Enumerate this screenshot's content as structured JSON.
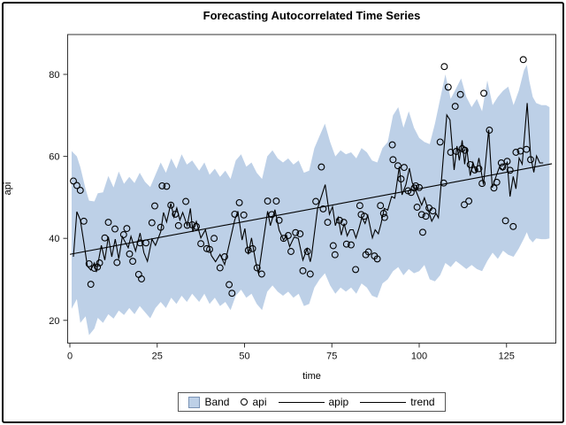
{
  "title": "Forecasting Autocorrelated Time Series",
  "x_axis": {
    "label": "time"
  },
  "y_axis": {
    "label": "api"
  },
  "legend": {
    "items": [
      {
        "label": "Band",
        "type": "band"
      },
      {
        "label": "api",
        "type": "marker"
      },
      {
        "label": "apip",
        "type": "line"
      },
      {
        "label": "trend",
        "type": "line"
      }
    ]
  },
  "colors": {
    "band_fill": "#bdd0e7",
    "band_edge": "#7a93b5",
    "line": "#000000",
    "marker": "#000000",
    "frame": "#333333",
    "tick_text": "#111111",
    "background": "#ffffff",
    "outer_border": "#000000"
  },
  "chart_data": {
    "type": "composite",
    "title": "Forecasting Autocorrelated Time Series",
    "xlabel": "time",
    "ylabel": "api",
    "x_ticks": [
      0,
      25,
      50,
      75,
      100,
      125
    ],
    "y_ticks": [
      20,
      40,
      60,
      80
    ],
    "xlim": [
      -0.6,
      139.1
    ],
    "ylim": [
      13.5,
      89.7
    ],
    "grid": false,
    "legend_position": "bottom",
    "band": {
      "name": "Band",
      "t": [
        0.5,
        2,
        3,
        4.5,
        5.5,
        7,
        8,
        9.5,
        11,
        12.5,
        14,
        15.5,
        17,
        18.5,
        20,
        21.5,
        23,
        24.5,
        26,
        27.5,
        29,
        30.5,
        32,
        33.5,
        35,
        37,
        38.5,
        40,
        41.5,
        43,
        44.5,
        46,
        47.5,
        49,
        50.5,
        52,
        53.5,
        55,
        56.5,
        58,
        59.5,
        61,
        62.5,
        64,
        65.5,
        67,
        68.5,
        70,
        71.5,
        73,
        74.5,
        76,
        77.5,
        79,
        80.5,
        82,
        83.5,
        85,
        86.5,
        88,
        89.5,
        91,
        92.5,
        94,
        95.5,
        97,
        98.5,
        100,
        101.5,
        103,
        104.5,
        106,
        107.5,
        109,
        110.5,
        112,
        113.5,
        115,
        116.5,
        118,
        119.5,
        121,
        122.5,
        124,
        125.5,
        127,
        128.5,
        130,
        130.8,
        131.5,
        132.5,
        133.5,
        135,
        136.3,
        137.3
      ],
      "lower": [
        22.8,
        25.2,
        19.4,
        21,
        16.4,
        18,
        20.6,
        19.4,
        21.5,
        20.4,
        22.4,
        21.3,
        23,
        21.5,
        23.5,
        22,
        20.5,
        23,
        24.5,
        23,
        25.5,
        24,
        26,
        24.5,
        26.5,
        24.5,
        26.5,
        24,
        25.5,
        23.5,
        24.5,
        22.5,
        26,
        27.5,
        25.5,
        26.5,
        24,
        22.5,
        27,
        28.5,
        27,
        26,
        27,
        25.5,
        26.5,
        23.5,
        24,
        28,
        30,
        31.5,
        28.5,
        26.5,
        28,
        27,
        28,
        26.5,
        29,
        28,
        26,
        25.5,
        29,
        30,
        32,
        33,
        31,
        32.5,
        31.5,
        32,
        33.5,
        30,
        29.5,
        31,
        34,
        33,
        34.5,
        33.5,
        32.5,
        33.5,
        32.5,
        32,
        34.5,
        36.5,
        35,
        37,
        36,
        35.5,
        37.5,
        40,
        41.5,
        40,
        39,
        40,
        39.8,
        39.8,
        40
      ],
      "upper": [
        61.3,
        60,
        57.4,
        52,
        49.2,
        49,
        51,
        51.2,
        55.2,
        52.4,
        56.3,
        53.3,
        55,
        53.5,
        56,
        53.8,
        52.5,
        55.5,
        58.5,
        56,
        59.5,
        57,
        60.5,
        58,
        59,
        56.5,
        58.5,
        55.5,
        57,
        55,
        56.5,
        54.5,
        59,
        60.5,
        57.5,
        58.5,
        56,
        54.5,
        60,
        61.5,
        59.5,
        58.5,
        59.5,
        58,
        59,
        56,
        56.5,
        62,
        65,
        68,
        63.5,
        60,
        61.5,
        60.5,
        61,
        59.5,
        62,
        61,
        59,
        58.5,
        62,
        63.5,
        70,
        72,
        67,
        71,
        67,
        64.5,
        63.5,
        63,
        68,
        74,
        80,
        74,
        76.5,
        79,
        74.5,
        72,
        74,
        71,
        78.5,
        72.5,
        74.5,
        76,
        77,
        72.5,
        76,
        81,
        82.3,
        78.5,
        74.5,
        73,
        72.5,
        72.5,
        72
      ]
    },
    "scatter": {
      "name": "api",
      "points": [
        [
          1,
          54
        ],
        [
          2,
          52.9
        ],
        [
          3,
          51.7
        ],
        [
          4,
          44.2
        ],
        [
          5.5,
          33.8
        ],
        [
          6,
          28.8
        ],
        [
          7,
          32.7
        ],
        [
          7.9,
          33
        ],
        [
          8.5,
          34
        ],
        [
          10,
          40.1
        ],
        [
          11,
          43.9
        ],
        [
          12.9,
          42.3
        ],
        [
          13.5,
          34.1
        ],
        [
          15.4,
          40.9
        ],
        [
          16.3,
          42.4
        ],
        [
          17.1,
          36.2
        ],
        [
          18,
          34.4
        ],
        [
          19.7,
          31.2
        ],
        [
          20.1,
          38.9
        ],
        [
          20.5,
          30.1
        ],
        [
          21.8,
          38.9
        ],
        [
          23.5,
          43.8
        ],
        [
          24.3,
          47.9
        ],
        [
          26,
          42.7
        ],
        [
          26.4,
          52.8
        ],
        [
          27.7,
          52.7
        ],
        [
          28.9,
          48.1
        ],
        [
          30.2,
          45.9
        ],
        [
          31.1,
          43.1
        ],
        [
          33.2,
          49
        ],
        [
          33.6,
          43.2
        ],
        [
          35,
          43.3
        ],
        [
          36.2,
          42.9
        ],
        [
          37.5,
          38.7
        ],
        [
          39.2,
          37.5
        ],
        [
          40,
          37.3
        ],
        [
          41.3,
          40
        ],
        [
          43,
          32.8
        ],
        [
          44.3,
          35.5
        ],
        [
          45.6,
          28.7
        ],
        [
          46.4,
          26.6
        ],
        [
          47.2,
          45.9
        ],
        [
          48.5,
          48.7
        ],
        [
          49.8,
          45.7
        ],
        [
          51.1,
          37.1
        ],
        [
          52.3,
          37.5
        ],
        [
          53.6,
          32.8
        ],
        [
          54.9,
          31.3
        ],
        [
          56.6,
          49.1
        ],
        [
          57.8,
          45.8
        ],
        [
          59.1,
          49.1
        ],
        [
          59.9,
          44.4
        ],
        [
          61.2,
          40
        ],
        [
          62.5,
          40.7
        ],
        [
          63.3,
          36.8
        ],
        [
          64.6,
          41.4
        ],
        [
          65.9,
          41.1
        ],
        [
          66.7,
          32.1
        ],
        [
          68,
          36.8
        ],
        [
          68.8,
          31.3
        ],
        [
          70.4,
          49
        ],
        [
          72,
          57.4
        ],
        [
          72.5,
          47.2
        ],
        [
          73.8,
          43.9
        ],
        [
          75.4,
          38.2
        ],
        [
          75.9,
          36
        ],
        [
          77.2,
          44.4
        ],
        [
          78.4,
          43.9
        ],
        [
          79.2,
          38.6
        ],
        [
          80.5,
          38.4
        ],
        [
          81.8,
          32.4
        ],
        [
          83,
          48
        ],
        [
          83.4,
          45.8
        ],
        [
          84.3,
          45.4
        ],
        [
          84.7,
          36
        ],
        [
          85.5,
          36.7
        ],
        [
          87.2,
          35.7
        ],
        [
          88,
          35
        ],
        [
          88.9,
          48
        ],
        [
          89.8,
          46.1
        ],
        [
          90.1,
          45.1
        ],
        [
          92.3,
          62.8
        ],
        [
          92.5,
          59.2
        ],
        [
          93.9,
          57.7
        ],
        [
          94.8,
          54.5
        ],
        [
          95.7,
          57.3
        ],
        [
          96.8,
          51.6
        ],
        [
          97.7,
          51.2
        ],
        [
          98.6,
          52.3
        ],
        [
          99,
          52.8
        ],
        [
          99.4,
          47.6
        ],
        [
          100,
          52.4
        ],
        [
          100.7,
          45.8
        ],
        [
          101,
          41.5
        ],
        [
          101.9,
          45.4
        ],
        [
          102.8,
          47.4
        ],
        [
          103.9,
          46.7
        ],
        [
          106,
          63.5
        ],
        [
          107,
          53.5
        ],
        [
          107.2,
          81.9
        ],
        [
          108.3,
          76.9
        ],
        [
          109,
          61
        ],
        [
          110.3,
          72.2
        ],
        [
          110.6,
          61.2
        ],
        [
          111.8,
          75.1
        ],
        [
          112.3,
          61.9
        ],
        [
          112.9,
          48.2
        ],
        [
          113.1,
          61.5
        ],
        [
          114.2,
          49.1
        ],
        [
          114.6,
          58
        ],
        [
          115.9,
          56.7
        ],
        [
          117.1,
          57
        ],
        [
          118,
          53.4
        ],
        [
          118.5,
          75.4
        ],
        [
          120.1,
          66.4
        ],
        [
          121.4,
          52.3
        ],
        [
          122.2,
          53.7
        ],
        [
          123.5,
          58.4
        ],
        [
          123.9,
          57.4
        ],
        [
          124.7,
          44.3
        ],
        [
          125.2,
          58.8
        ],
        [
          126,
          56.6
        ],
        [
          126.9,
          42.9
        ],
        [
          127.7,
          61
        ],
        [
          129,
          61.3
        ],
        [
          129.8,
          83.6
        ],
        [
          130.7,
          61.7
        ],
        [
          131.9,
          59.2
        ]
      ]
    },
    "apip_line": {
      "name": "apip",
      "points": [
        [
          1,
          35.5
        ],
        [
          2,
          46.5
        ],
        [
          3,
          44.5
        ],
        [
          4,
          39
        ],
        [
          5,
          33.2
        ],
        [
          6,
          32.3
        ],
        [
          7,
          34
        ],
        [
          7.6,
          31.8
        ],
        [
          9,
          38.3
        ],
        [
          10,
          34.7
        ],
        [
          11,
          40.4
        ],
        [
          12,
          35.5
        ],
        [
          13,
          39.8
        ],
        [
          14,
          35
        ],
        [
          15,
          40.4
        ],
        [
          16.7,
          37.7
        ],
        [
          17.5,
          40.5
        ],
        [
          18.8,
          36.9
        ],
        [
          20.1,
          41.3
        ],
        [
          21.2,
          36.5
        ],
        [
          22.2,
          34.4
        ],
        [
          23.5,
          39.8
        ],
        [
          24.5,
          38.3
        ],
        [
          26,
          41.6
        ],
        [
          26.8,
          46.3
        ],
        [
          27.7,
          44
        ],
        [
          28.9,
          48.5
        ],
        [
          29.8,
          45.2
        ],
        [
          30.6,
          47.4
        ],
        [
          31.5,
          44.5
        ],
        [
          32.3,
          46.3
        ],
        [
          33.6,
          43.1
        ],
        [
          34.5,
          47.3
        ],
        [
          35.2,
          41.6
        ],
        [
          36.2,
          44.1
        ],
        [
          37.5,
          40.1
        ],
        [
          38.8,
          42.1
        ],
        [
          40.5,
          35.8
        ],
        [
          41.7,
          34.3
        ],
        [
          43,
          36.1
        ],
        [
          44.3,
          33.6
        ],
        [
          47.2,
          44.5
        ],
        [
          48.1,
          46.6
        ],
        [
          49.3,
          39.6
        ],
        [
          50.1,
          42.4
        ],
        [
          51.1,
          36.1
        ],
        [
          52,
          40.1
        ],
        [
          53.2,
          34.3
        ],
        [
          54,
          31.4
        ],
        [
          56.6,
          46.6
        ],
        [
          57.4,
          43.1
        ],
        [
          58.7,
          47
        ],
        [
          59.9,
          42
        ],
        [
          61.2,
          39.6
        ],
        [
          62,
          40.8
        ],
        [
          62.9,
          38
        ],
        [
          64.2,
          40.3
        ],
        [
          65.4,
          40
        ],
        [
          66.7,
          34.7
        ],
        [
          67.9,
          37.5
        ],
        [
          68.8,
          34.3
        ],
        [
          69.2,
          35.8
        ],
        [
          70.9,
          47.3
        ],
        [
          73.1,
          53.1
        ],
        [
          74.3,
          45.9
        ],
        [
          75.2,
          47.7
        ],
        [
          76,
          43.1
        ],
        [
          76.8,
          45.1
        ],
        [
          77.7,
          40.8
        ],
        [
          78.5,
          43.6
        ],
        [
          79.4,
          40.6
        ],
        [
          80.2,
          42.1
        ],
        [
          81.1,
          42.1
        ],
        [
          81.9,
          40.1
        ],
        [
          82.8,
          42.6
        ],
        [
          83.6,
          45.1
        ],
        [
          84.5,
          43.6
        ],
        [
          85.3,
          45.6
        ],
        [
          86.6,
          40.1
        ],
        [
          87.4,
          42.1
        ],
        [
          88.3,
          41.1
        ],
        [
          89.1,
          43.6
        ],
        [
          90,
          47.3
        ],
        [
          91,
          46.9
        ],
        [
          92.1,
          50.2
        ],
        [
          93,
          49.8
        ],
        [
          94.3,
          57.5
        ],
        [
          95.1,
          50.6
        ],
        [
          96.2,
          53.1
        ],
        [
          97.2,
          57.1
        ],
        [
          98,
          53.6
        ],
        [
          99,
          51.7
        ],
        [
          100.7,
          48.1
        ],
        [
          101.5,
          49.9
        ],
        [
          103.6,
          44.2
        ],
        [
          104.8,
          46.1
        ],
        [
          105.5,
          45
        ],
        [
          107.9,
          70.1
        ],
        [
          108.8,
          68.9
        ],
        [
          110,
          56.7
        ],
        [
          110.8,
          62.5
        ],
        [
          111.5,
          59
        ],
        [
          112.3,
          63.9
        ],
        [
          113,
          58.1
        ],
        [
          113.6,
          62
        ],
        [
          114.6,
          55.3
        ],
        [
          115.4,
          58.5
        ],
        [
          116.3,
          56.1
        ],
        [
          117.1,
          59.6
        ],
        [
          118.4,
          53.1
        ],
        [
          119.9,
          66.5
        ],
        [
          120.9,
          52.4
        ],
        [
          122.2,
          55.6
        ],
        [
          123,
          57.5
        ],
        [
          123.9,
          56.6
        ],
        [
          125.2,
          58.5
        ],
        [
          126,
          50.2
        ],
        [
          126.9,
          55.1
        ],
        [
          127.7,
          52.1
        ],
        [
          128.6,
          59.6
        ],
        [
          129.5,
          58.1
        ],
        [
          130.9,
          73
        ],
        [
          131.9,
          60.1
        ],
        [
          132.8,
          56.1
        ],
        [
          133.6,
          60.1
        ],
        [
          134.5,
          58.4
        ],
        [
          135.5,
          58.4
        ]
      ]
    },
    "trend_line": {
      "name": "trend",
      "points": [
        [
          0,
          36.1
        ],
        [
          138,
          58.2
        ]
      ]
    }
  }
}
